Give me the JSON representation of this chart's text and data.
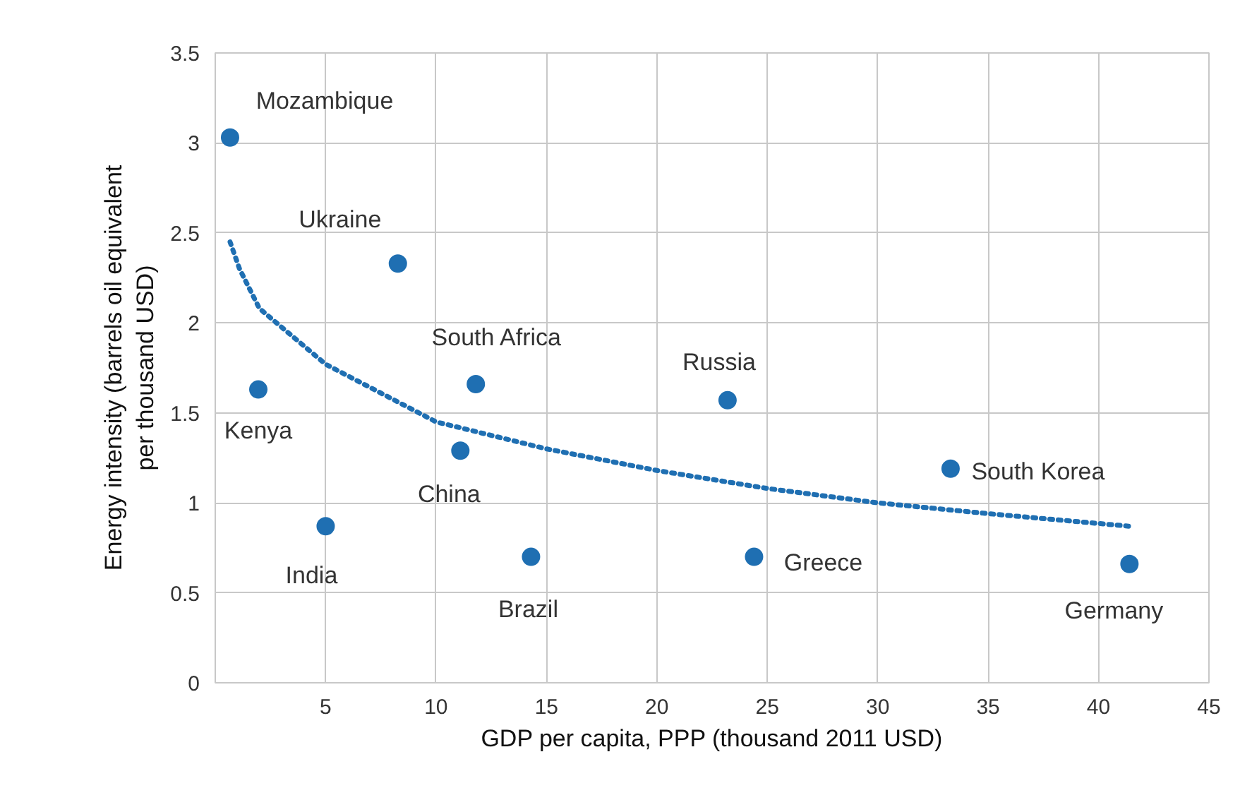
{
  "chart_data": {
    "type": "scatter",
    "xlabel": "GDP per capita, PPP (thousand 2011 USD)",
    "ylabel": "Energy intensity (barrels oil equivalent\nper thousand USD)",
    "xlim": [
      0,
      45
    ],
    "xticks": [
      5,
      10,
      15,
      20,
      25,
      30,
      35,
      40,
      45
    ],
    "ylim": [
      0,
      3.5
    ],
    "yticks": [
      0,
      0.5,
      1,
      1.5,
      2,
      2.5,
      3,
      3.5
    ],
    "grid": true,
    "marker": "circle",
    "series": [
      {
        "color": "#1f6fb2",
        "x": [
          0.67,
          8.27,
          1.95,
          5.0,
          11.8,
          11.1,
          14.3,
          23.2,
          24.4,
          33.3,
          41.4
        ],
        "values": [
          3.03,
          2.33,
          1.63,
          0.87,
          1.66,
          1.29,
          0.7,
          1.57,
          0.7,
          1.19,
          0.66
        ]
      },
      {
        "type": "line",
        "color": "#1f6fb2",
        "line_style": "dotted",
        "marker": "none",
        "x": [
          0.67,
          1.1,
          2,
          5,
          10,
          15,
          20,
          25,
          30,
          35,
          41.4
        ],
        "values": [
          2.45,
          2.3,
          2.08,
          1.77,
          1.45,
          1.3,
          1.18,
          1.08,
          1.0,
          0.94,
          0.87
        ]
      }
    ],
    "annotations": [
      {
        "text": "Mozambique",
        "x": 0.67,
        "y": 3.03
      },
      {
        "text": "Ukraine",
        "x": 8.27,
        "y": 2.33
      },
      {
        "text": "Kenya",
        "x": 1.95,
        "y": 1.63
      },
      {
        "text": "India",
        "x": 5.0,
        "y": 0.87
      },
      {
        "text": "South Africa",
        "x": 11.8,
        "y": 1.66
      },
      {
        "text": "China",
        "x": 11.1,
        "y": 1.29
      },
      {
        "text": "Brazil",
        "x": 14.3,
        "y": 0.7
      },
      {
        "text": "Russia",
        "x": 23.2,
        "y": 1.57
      },
      {
        "text": "Greece",
        "x": 24.4,
        "y": 0.7
      },
      {
        "text": "South Korea",
        "x": 33.3,
        "y": 1.19
      },
      {
        "text": "Germany",
        "x": 41.4,
        "y": 0.66
      }
    ]
  }
}
